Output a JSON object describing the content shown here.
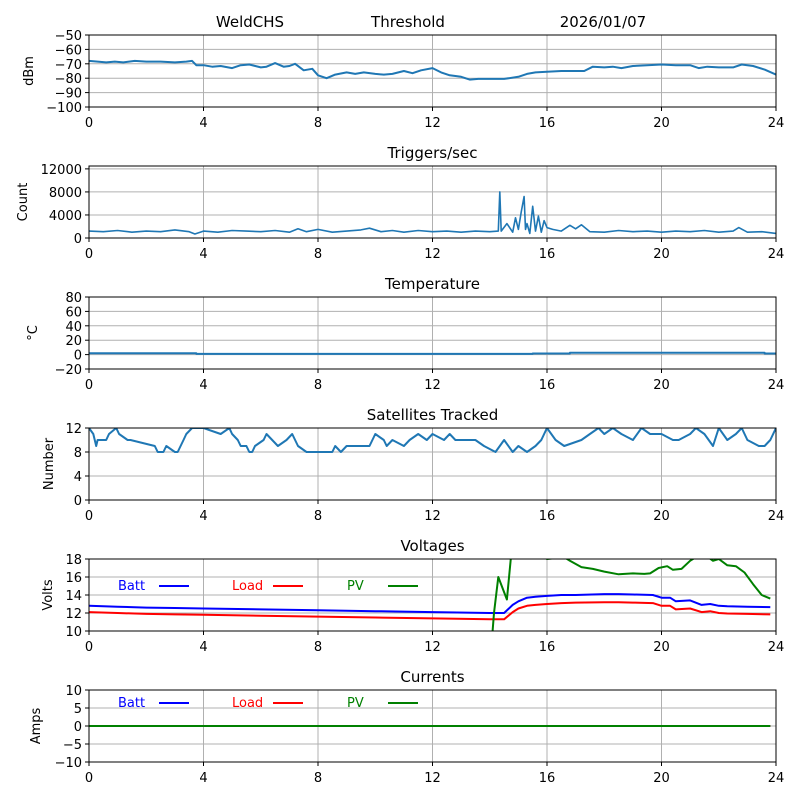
{
  "header": {
    "station": "WeldCHS",
    "mode": "Threshold",
    "date": "2026/01/07"
  },
  "chart_data": [
    {
      "id": "signal",
      "type": "line",
      "title": "",
      "xlabel": "",
      "ylabel": "dBm",
      "xlim": [
        0,
        24
      ],
      "ylim": [
        -100,
        -50
      ],
      "xticks": [
        0,
        4,
        8,
        12,
        16,
        20,
        24
      ],
      "yticks": [
        -100,
        -90,
        -80,
        -70,
        -60,
        -50
      ],
      "ytick_labels": [
        "−100",
        "−90",
        "−80",
        "−70",
        "−60",
        "−50"
      ],
      "grid": true,
      "series": [
        {
          "name": "signal",
          "color": "#1f77b4",
          "x": [
            0,
            0.3,
            0.6,
            0.9,
            1.2,
            1.6,
            2.0,
            2.5,
            3.0,
            3.4,
            3.6,
            3.75,
            4.0,
            4.3,
            4.6,
            5.0,
            5.3,
            5.6,
            6.0,
            6.2,
            6.5,
            6.8,
            7.0,
            7.2,
            7.5,
            7.8,
            8.0,
            8.3,
            8.6,
            9.0,
            9.3,
            9.6,
            10.0,
            10.3,
            10.6,
            11.0,
            11.3,
            11.6,
            12.0,
            12.3,
            12.6,
            13.0,
            13.3,
            13.6,
            14.0,
            14.5,
            15.0,
            15.3,
            15.6,
            16.0,
            16.5,
            17.0,
            17.3,
            17.6,
            18.0,
            18.3,
            18.6,
            19.0,
            19.5,
            20.0,
            20.5,
            21.0,
            21.3,
            21.6,
            22.0,
            22.5,
            22.8,
            23.2,
            23.6,
            24.0
          ],
          "y": [
            -68,
            -68.5,
            -69,
            -68.5,
            -69,
            -68,
            -68.5,
            -68.5,
            -69,
            -68.5,
            -68,
            -71,
            -71,
            -72,
            -71.5,
            -73,
            -71,
            -70.5,
            -72.5,
            -72,
            -69.5,
            -72,
            -71.5,
            -70,
            -74.5,
            -73.5,
            -78,
            -80,
            -77.5,
            -76,
            -77,
            -76,
            -77,
            -77.5,
            -77,
            -75,
            -76.5,
            -74.5,
            -73,
            -76,
            -78,
            -79,
            -81,
            -80.5,
            -80.5,
            -80.5,
            -79,
            -77,
            -76,
            -75.5,
            -75,
            -75,
            -75,
            -72,
            -72.5,
            -72,
            -73,
            -71.5,
            -71,
            -70.5,
            -71,
            -71,
            -73,
            -72,
            -72.5,
            -72.5,
            -70.5,
            -71.5,
            -74,
            -77.5
          ]
        }
      ]
    },
    {
      "id": "triggers",
      "type": "line",
      "title": "Triggers/sec",
      "xlabel": "",
      "ylabel": "Count",
      "xlim": [
        0,
        24
      ],
      "ylim": [
        0,
        12500
      ],
      "xticks": [
        0,
        4,
        8,
        12,
        16,
        20,
        24
      ],
      "yticks": [
        0,
        4000,
        8000,
        12000
      ],
      "ytick_labels": [
        "0",
        "4000",
        "8000",
        "12000"
      ],
      "grid": true,
      "series": [
        {
          "name": "triggers",
          "color": "#1f77b4",
          "x": [
            0,
            0.5,
            1.0,
            1.5,
            2.0,
            2.5,
            3.0,
            3.5,
            3.7,
            4.0,
            4.5,
            5.0,
            5.5,
            6.0,
            6.5,
            7.0,
            7.3,
            7.6,
            8.0,
            8.5,
            9.0,
            9.5,
            9.8,
            10.2,
            10.6,
            11.0,
            11.5,
            12.0,
            12.5,
            13.0,
            13.5,
            14.0,
            14.3,
            14.35,
            14.4,
            14.6,
            14.8,
            14.9,
            15.0,
            15.1,
            15.2,
            15.25,
            15.3,
            15.4,
            15.5,
            15.6,
            15.7,
            15.8,
            15.9,
            16.0,
            16.2,
            16.5,
            16.8,
            17.0,
            17.2,
            17.5,
            18.0,
            18.5,
            19.0,
            19.5,
            20.0,
            20.5,
            21.0,
            21.5,
            22.0,
            22.5,
            22.7,
            23.0,
            23.5,
            24.0
          ],
          "y": [
            1200,
            1100,
            1300,
            1000,
            1200,
            1100,
            1400,
            1100,
            700,
            1200,
            1000,
            1300,
            1200,
            1100,
            1300,
            1000,
            1600,
            1100,
            1500,
            1000,
            1200,
            1400,
            1700,
            1100,
            1300,
            1000,
            1300,
            1100,
            1200,
            1000,
            1200,
            1100,
            1200,
            8000,
            1200,
            2500,
            1000,
            3500,
            1500,
            4500,
            7200,
            1500,
            2500,
            800,
            5500,
            1200,
            3800,
            1000,
            3000,
            1800,
            1500,
            1200,
            2200,
            1600,
            2300,
            1100,
            1000,
            1300,
            1100,
            1200,
            1000,
            1200,
            1100,
            1300,
            1000,
            1200,
            1800,
            1000,
            1100,
            800
          ]
        }
      ]
    },
    {
      "id": "temperature",
      "type": "line",
      "title": "Temperature",
      "xlabel": "",
      "ylabel": "°C",
      "xlim": [
        0,
        24
      ],
      "ylim": [
        -20,
        80
      ],
      "xticks": [
        0,
        4,
        8,
        12,
        16,
        20,
        24
      ],
      "yticks": [
        -20,
        0,
        20,
        40,
        60,
        80
      ],
      "ytick_labels": [
        "−20",
        "0",
        "20",
        "40",
        "60",
        "80"
      ],
      "grid": true,
      "series": [
        {
          "name": "temperature",
          "color": "#1f77b4",
          "x": [
            0,
            3.75,
            3.75,
            15.5,
            15.5,
            16.8,
            16.8,
            23.6,
            23.6,
            24.0
          ],
          "y": [
            2,
            2,
            1,
            1,
            1.5,
            1.5,
            2.5,
            2.5,
            1.5,
            1.5
          ]
        }
      ]
    },
    {
      "id": "satellites",
      "type": "line",
      "title": "Satellites Tracked",
      "xlabel": "",
      "ylabel": "Number",
      "xlim": [
        0,
        24
      ],
      "ylim": [
        0,
        12
      ],
      "xticks": [
        0,
        4,
        8,
        12,
        16,
        20,
        24
      ],
      "yticks": [
        0,
        4,
        8,
        12
      ],
      "ytick_labels": [
        "0",
        "4",
        "8",
        "12"
      ],
      "grid": true,
      "series": [
        {
          "name": "satellites",
          "color": "#1f77b4",
          "x": [
            0,
            0.15,
            0.25,
            0.3,
            0.6,
            0.7,
            0.95,
            1.05,
            1.35,
            1.45,
            2.3,
            2.4,
            2.6,
            2.7,
            3.0,
            3.1,
            3.3,
            3.4,
            3.6,
            3.75,
            3.8,
            4.0,
            4.6,
            4.9,
            5.0,
            5.2,
            5.3,
            5.5,
            5.6,
            5.7,
            5.8,
            6.1,
            6.2,
            6.4,
            6.6,
            6.9,
            7.1,
            7.3,
            7.6,
            8.5,
            8.6,
            8.8,
            9.0,
            9.8,
            10.0,
            10.3,
            10.4,
            10.6,
            11.0,
            11.2,
            11.5,
            11.8,
            12.0,
            12.4,
            12.6,
            12.8,
            13.5,
            13.8,
            14.2,
            14.5,
            14.8,
            15.0,
            15.3,
            15.6,
            15.8,
            16.0,
            16.3,
            16.6,
            17.2,
            17.5,
            17.8,
            18.0,
            18.3,
            18.6,
            19.0,
            19.3,
            19.6,
            20.0,
            20.4,
            20.6,
            21.0,
            21.2,
            21.5,
            21.8,
            22.0,
            22.3,
            22.6,
            22.8,
            23.0,
            23.4,
            23.6,
            23.8,
            24.0
          ],
          "y": [
            12,
            11,
            9,
            10,
            10,
            11,
            12,
            11,
            10,
            10,
            9,
            8,
            8,
            9,
            8,
            8,
            10,
            11,
            12,
            12,
            12,
            12,
            11,
            12,
            11,
            10,
            9,
            9,
            8,
            8,
            9,
            10,
            11,
            10,
            9,
            10,
            11,
            9,
            8,
            8,
            9,
            8,
            9,
            9,
            11,
            10,
            9,
            10,
            9,
            10,
            11,
            10,
            11,
            10,
            11,
            10,
            10,
            9,
            8,
            10,
            8,
            9,
            8,
            9,
            10,
            12,
            10,
            9,
            10,
            11,
            12,
            11,
            12,
            11,
            10,
            12,
            11,
            11,
            10,
            10,
            11,
            12,
            11,
            9,
            12,
            10,
            11,
            12,
            10,
            9,
            9,
            10,
            12
          ]
        }
      ]
    },
    {
      "id": "voltages",
      "type": "line",
      "title": "Voltages",
      "xlabel": "",
      "ylabel": "Volts",
      "xlim": [
        0,
        24
      ],
      "ylim": [
        10,
        18
      ],
      "xticks": [
        0,
        4,
        8,
        12,
        16,
        20,
        24
      ],
      "yticks": [
        10,
        12,
        14,
        16,
        18
      ],
      "ytick_labels": [
        "10",
        "12",
        "14",
        "16",
        "18"
      ],
      "grid": true,
      "legend": {
        "placement": "top-left, inline row",
        "entries": [
          "Batt",
          "Load",
          "PV"
        ]
      },
      "series": [
        {
          "name": "Batt",
          "color": "#0000ff",
          "x": [
            0,
            1,
            2,
            3,
            4,
            6,
            8,
            10,
            12,
            14,
            14.5,
            14.8,
            15.0,
            15.3,
            15.6,
            16.0,
            16.5,
            17.0,
            18.0,
            18.5,
            19.0,
            19.7,
            20.0,
            20.3,
            20.5,
            21.0,
            21.4,
            21.7,
            22.0,
            22.3,
            23.0,
            23.8
          ],
          "y": [
            12.8,
            12.7,
            12.6,
            12.55,
            12.5,
            12.4,
            12.3,
            12.2,
            12.1,
            12.0,
            12.0,
            12.9,
            13.3,
            13.7,
            13.8,
            13.9,
            14.0,
            14.0,
            14.1,
            14.1,
            14.05,
            14.0,
            13.7,
            13.7,
            13.3,
            13.4,
            12.9,
            13.0,
            12.8,
            12.75,
            12.7,
            12.65
          ]
        },
        {
          "name": "Load",
          "color": "#ff0000",
          "x": [
            0,
            1,
            2,
            3,
            4,
            6,
            8,
            10,
            12,
            14,
            14.5,
            14.8,
            15.0,
            15.3,
            15.6,
            16.0,
            16.5,
            17.0,
            18.0,
            18.5,
            19.0,
            19.7,
            20.0,
            20.3,
            20.5,
            21.0,
            21.4,
            21.7,
            22.0,
            22.3,
            23.0,
            23.8
          ],
          "y": [
            12.1,
            12.0,
            11.9,
            11.85,
            11.8,
            11.7,
            11.6,
            11.5,
            11.4,
            11.3,
            11.3,
            12.1,
            12.5,
            12.8,
            12.9,
            13.0,
            13.1,
            13.15,
            13.2,
            13.2,
            13.15,
            13.1,
            12.8,
            12.8,
            12.4,
            12.5,
            12.1,
            12.2,
            12.0,
            11.95,
            11.9,
            11.85
          ]
        },
        {
          "name": "PV",
          "color": "#008000",
          "x": [
            14.1,
            14.15,
            14.3,
            14.6,
            14.75,
            14.9,
            15.2,
            15.5,
            15.8,
            16.0,
            16.3,
            16.6,
            16.8,
            17.2,
            17.6,
            18.0,
            18.5,
            19.0,
            19.4,
            19.6,
            19.9,
            20.2,
            20.4,
            20.7,
            21.0,
            21.2,
            21.5,
            21.8,
            22.0,
            22.3,
            22.6,
            22.9,
            23.2,
            23.5,
            23.8
          ],
          "y": [
            10,
            12,
            16,
            13.5,
            18.5,
            20,
            20,
            19,
            18.3,
            18.0,
            18.1,
            18.2,
            17.8,
            17.1,
            16.9,
            16.6,
            16.3,
            16.4,
            16.35,
            16.4,
            17.0,
            17.2,
            16.8,
            16.9,
            17.8,
            18.2,
            18.5,
            17.8,
            18.0,
            17.3,
            17.2,
            16.5,
            15.2,
            14.0,
            13.6
          ]
        }
      ]
    },
    {
      "id": "currents",
      "type": "line",
      "title": "Currents",
      "xlabel": "",
      "ylabel": "Amps",
      "xlim": [
        0,
        24
      ],
      "ylim": [
        -10,
        10
      ],
      "xticks": [
        0,
        4,
        8,
        12,
        16,
        20,
        24
      ],
      "yticks": [
        -10,
        -5,
        0,
        5,
        10
      ],
      "ytick_labels": [
        "−10",
        "−5",
        "0",
        "5",
        "10"
      ],
      "grid": true,
      "legend": {
        "placement": "top-left, inline row",
        "entries": [
          "Batt",
          "Load",
          "PV"
        ]
      },
      "series": [
        {
          "name": "Batt",
          "color": "#0000ff",
          "x": [
            0,
            23.8
          ],
          "y": [
            0,
            0
          ]
        },
        {
          "name": "Load",
          "color": "#ff0000",
          "x": [
            0,
            23.8
          ],
          "y": [
            0,
            0
          ]
        },
        {
          "name": "PV",
          "color": "#008000",
          "x": [
            0,
            23.8
          ],
          "y": [
            0,
            0
          ]
        }
      ]
    }
  ]
}
